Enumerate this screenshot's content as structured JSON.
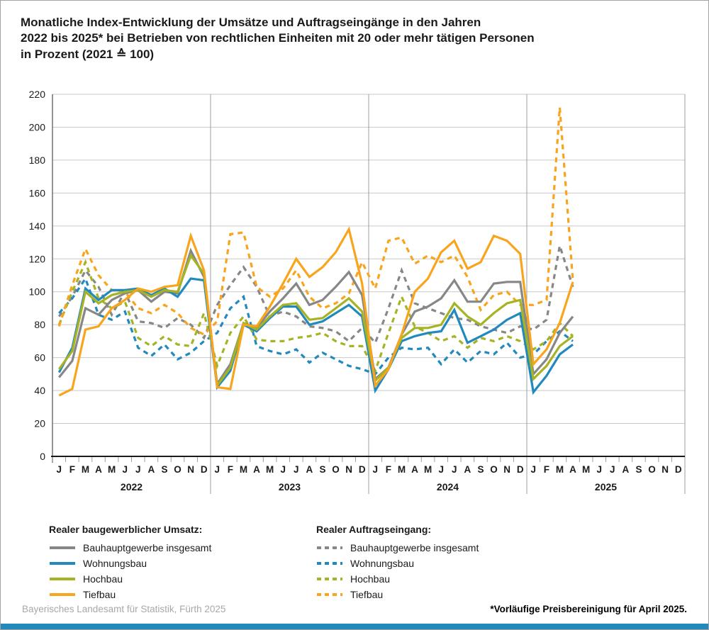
{
  "title": {
    "line1": "Monatliche Index-Entwicklung der Umsätze und Auftragseingänge in den Jahren",
    "line2": "2022 bis 2025* bei Betrieben von rechtlichen Einheiten mit 20 oder mehr tätigen Personen",
    "line3": "in Prozent (2021 ≙ 100)"
  },
  "chart_data": {
    "type": "line",
    "ylim": [
      0,
      220
    ],
    "ytick_step": 20,
    "grid": true,
    "month_labels": [
      "J",
      "F",
      "M",
      "A",
      "M",
      "J",
      "J",
      "A",
      "S",
      "O",
      "N",
      "D"
    ],
    "years": [
      "2022",
      "2023",
      "2024",
      "2025"
    ],
    "n_months_plotted": 40,
    "series": [
      {
        "name": "Bauhauptgewerbe insgesamt",
        "group": "umsatz",
        "style": "solid",
        "color": "#878787",
        "values": [
          48,
          58,
          90,
          86,
          95,
          99,
          101,
          94,
          100,
          99,
          125,
          109,
          44,
          56,
          81,
          78,
          88,
          96,
          105,
          92,
          95,
          103,
          112,
          98,
          47,
          54,
          74,
          88,
          91,
          96,
          107,
          94,
          94,
          105,
          106,
          106,
          50,
          59,
          75,
          85
        ]
      },
      {
        "name": "Wohnungsbau",
        "group": "umsatz",
        "style": "solid",
        "color": "#2289bd",
        "values": [
          51,
          66,
          102,
          95,
          101,
          101,
          102,
          98,
          102,
          97,
          108,
          107,
          42,
          52,
          80,
          76,
          84,
          91,
          91,
          80,
          82,
          87,
          92,
          85,
          40,
          53,
          70,
          73,
          75,
          76,
          89,
          69,
          73,
          77,
          83,
          87,
          39,
          49,
          62,
          68
        ]
      },
      {
        "name": "Hochbau",
        "group": "umsatz",
        "style": "solid",
        "color": "#a6b323",
        "values": [
          53,
          64,
          100,
          93,
          98,
          100,
          101,
          97,
          101,
          100,
          122,
          111,
          43,
          54,
          81,
          77,
          85,
          92,
          93,
          83,
          84,
          90,
          96,
          88,
          46,
          54,
          72,
          78,
          78,
          80,
          93,
          85,
          80,
          87,
          93,
          95,
          47,
          55,
          67,
          73
        ]
      },
      {
        "name": "Tiefbau",
        "group": "umsatz",
        "style": "solid",
        "color": "#f8a41d",
        "values": [
          37,
          41,
          77,
          79,
          90,
          95,
          102,
          100,
          103,
          104,
          134,
          113,
          42,
          41,
          80,
          79,
          91,
          105,
          120,
          109,
          115,
          124,
          138,
          105,
          43,
          53,
          74,
          100,
          108,
          124,
          131,
          114,
          118,
          134,
          131,
          123,
          56,
          65,
          81,
          106
        ]
      },
      {
        "name": "Bauhauptgewerbe insgesamt",
        "group": "auftrag",
        "style": "dashed",
        "color": "#878787",
        "values": [
          85,
          97,
          113,
          103,
          86,
          100,
          82,
          81,
          78,
          84,
          80,
          72,
          92,
          104,
          115,
          103,
          85,
          88,
          85,
          79,
          78,
          76,
          70,
          78,
          69,
          90,
          113,
          93,
          90,
          87,
          84,
          83,
          79,
          77,
          75,
          79,
          77,
          83,
          128,
          103
        ]
      },
      {
        "name": "Wohnungsbau",
        "group": "auftrag",
        "style": "dashed",
        "color": "#2289bd",
        "values": [
          87,
          96,
          108,
          86,
          83,
          88,
          66,
          61,
          68,
          59,
          63,
          70,
          75,
          90,
          97,
          67,
          64,
          62,
          65,
          57,
          63,
          59,
          55,
          53,
          50,
          60,
          66,
          65,
          66,
          56,
          65,
          57,
          64,
          62,
          69,
          60,
          62,
          70,
          76,
          70
        ]
      },
      {
        "name": "Hochbau",
        "group": "auftrag",
        "style": "dashed",
        "color": "#a6b323",
        "values": [
          80,
          100,
          118,
          96,
          90,
          94,
          72,
          67,
          73,
          68,
          67,
          87,
          55,
          75,
          85,
          71,
          70,
          70,
          72,
          73,
          75,
          70,
          67,
          67,
          52,
          75,
          97,
          79,
          75,
          70,
          73,
          66,
          72,
          70,
          73,
          70,
          65,
          70,
          81,
          73
        ]
      },
      {
        "name": "Tiefbau",
        "group": "auftrag",
        "style": "dashed",
        "color": "#f8a41d",
        "values": [
          79,
          104,
          126,
          110,
          101,
          100,
          90,
          87,
          92,
          87,
          78,
          74,
          82,
          135,
          136,
          103,
          97,
          102,
          113,
          97,
          90,
          93,
          99,
          118,
          102,
          131,
          133,
          117,
          122,
          118,
          122,
          109,
          89,
          98,
          100,
          92,
          92,
          95,
          212,
          107
        ]
      }
    ]
  },
  "legend": {
    "umsatz_title": "Realer baugewerblicher Umsatz:",
    "auftrag_title": "Realer Auftragseingang:"
  },
  "footer": {
    "source": "Bayerisches Landesamt für Statistik, Fürth 2025",
    "note": "*Vorläufige Preisbereinigung für April 2025."
  }
}
